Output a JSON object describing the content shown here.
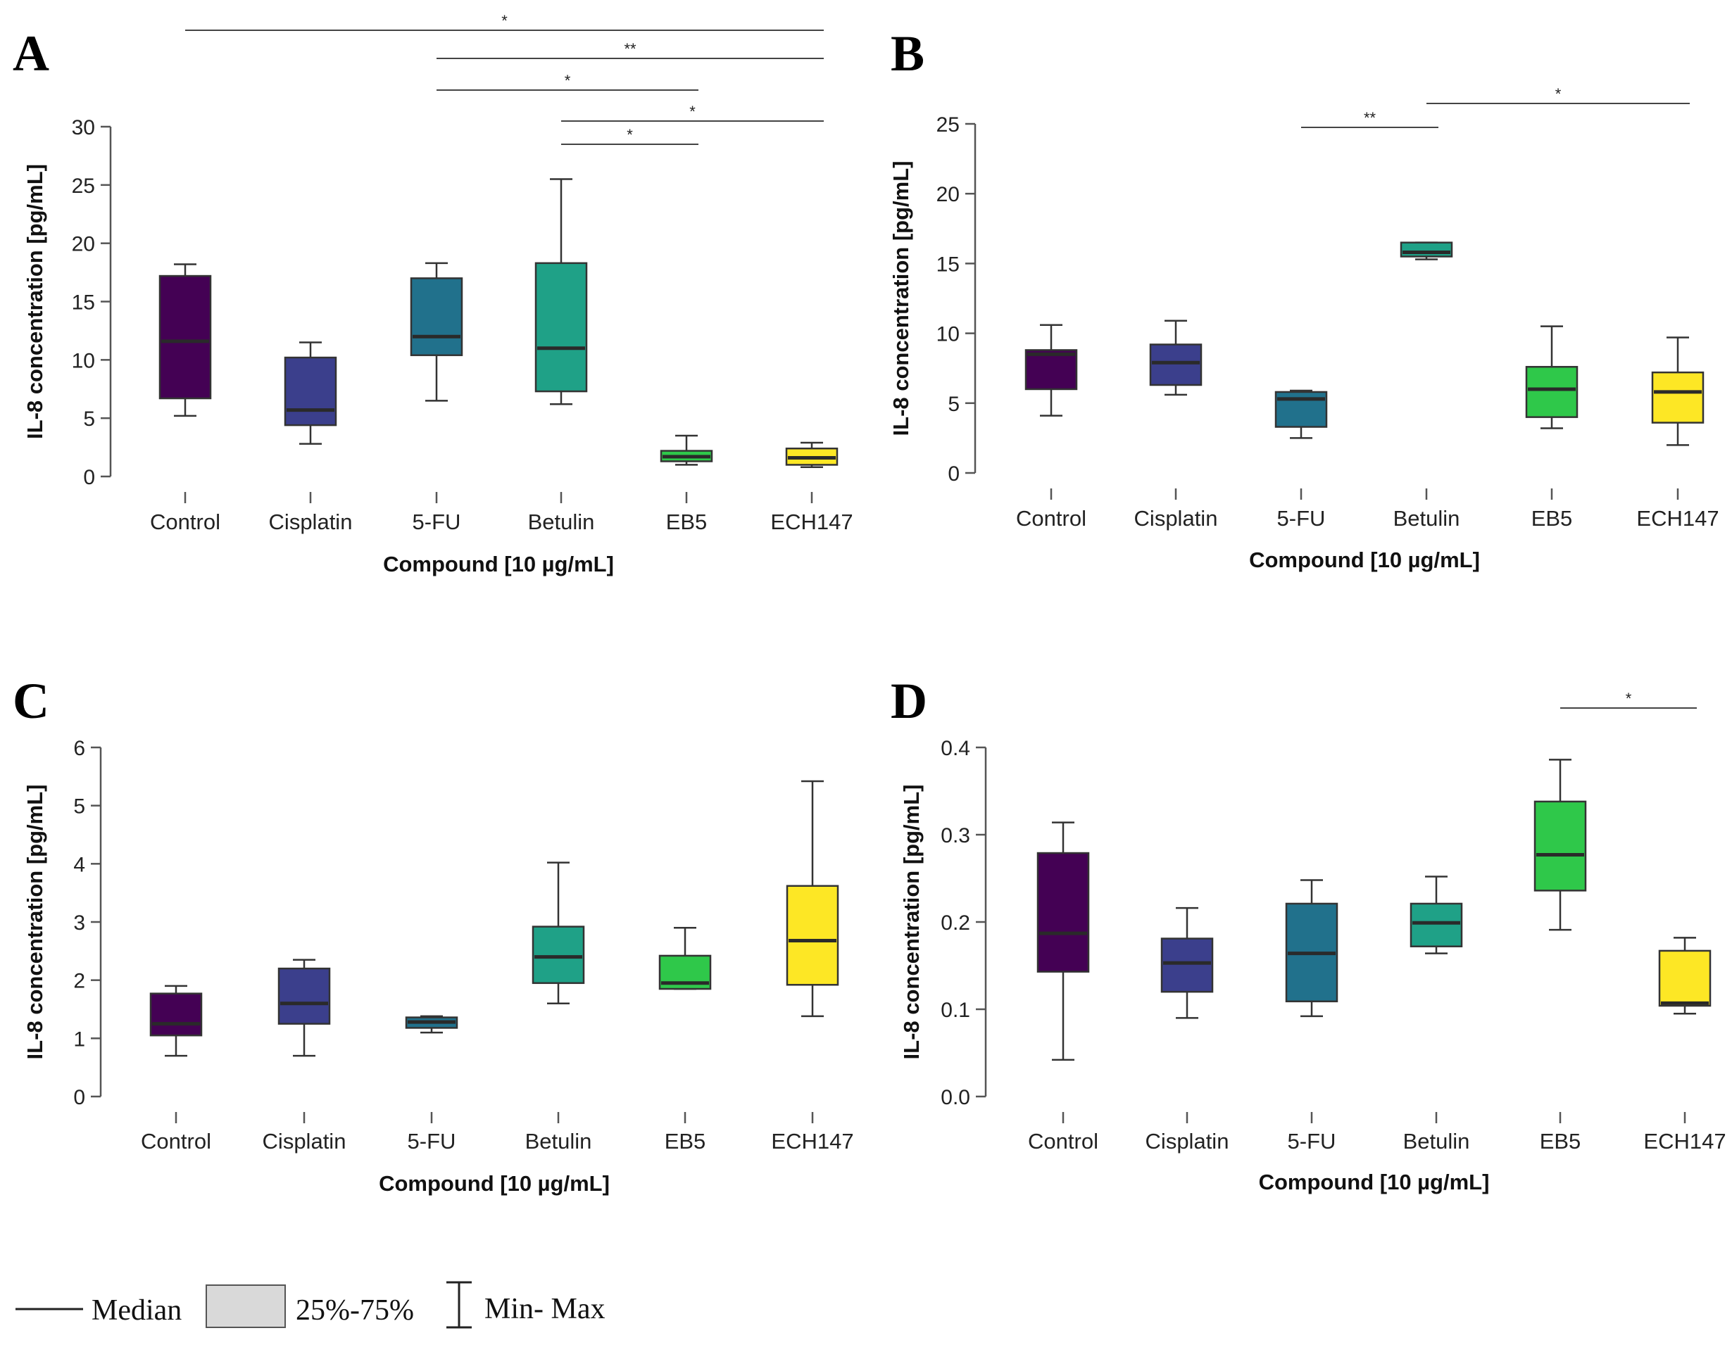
{
  "figure": {
    "legend": {
      "median": "Median",
      "iqr": "25%-75%",
      "range": "Min- Max"
    }
  },
  "chart_data": [
    {
      "panel": "A",
      "type": "box",
      "xlabel": "Compound [10 µg/mL]",
      "ylabel": "IL-8 concentration [pg/mL]",
      "ylim": [
        0,
        30
      ],
      "yticks": [
        "0",
        "5",
        "10",
        "15",
        "20",
        "25",
        "30"
      ],
      "categories": [
        "Control",
        "Cisplatin",
        "5-FU",
        "Betulin",
        "EB5",
        "ECH147"
      ],
      "colors": [
        "#440154",
        "#3b3f8c",
        "#21718c",
        "#1fa187",
        "#2fc84a",
        "#fde725"
      ],
      "boxes": [
        {
          "min": 5.2,
          "q1": 6.7,
          "median": 11.6,
          "q3": 17.2,
          "max": 18.2
        },
        {
          "min": 2.8,
          "q1": 4.4,
          "median": 5.7,
          "q3": 10.2,
          "max": 11.5
        },
        {
          "min": 6.5,
          "q1": 10.4,
          "median": 12.0,
          "q3": 17.0,
          "max": 18.3
        },
        {
          "min": 6.2,
          "q1": 7.3,
          "median": 11.0,
          "q3": 18.3,
          "max": 25.5
        },
        {
          "min": 1.0,
          "q1": 1.3,
          "median": 1.7,
          "q3": 2.2,
          "max": 3.5
        },
        {
          "min": 0.8,
          "q1": 1.0,
          "median": 1.6,
          "q3": 2.4,
          "max": 2.9
        }
      ],
      "significance": [
        {
          "from": 0,
          "to": 5,
          "label": "*",
          "level": 0
        },
        {
          "from": 2,
          "to": 5,
          "label": "**",
          "level": 1
        },
        {
          "from": 2,
          "to": 4,
          "label": "*",
          "level": 2
        },
        {
          "from": 3,
          "to": 5,
          "label": "*",
          "level": 3
        },
        {
          "from": 3,
          "to": 4,
          "label": "*",
          "level": 4
        }
      ]
    },
    {
      "panel": "B",
      "type": "box",
      "xlabel": "Compound [10 µg/mL]",
      "ylabel": "IL-8 concentration [pg/mL]",
      "ylim": [
        0,
        25
      ],
      "yticks": [
        "0",
        "5",
        "10",
        "15",
        "20",
        "25"
      ],
      "categories": [
        "Control",
        "Cisplatin",
        "5-FU",
        "Betulin",
        "EB5",
        "ECH147"
      ],
      "colors": [
        "#440154",
        "#3b3f8c",
        "#21718c",
        "#1fa187",
        "#2fc84a",
        "#fde725"
      ],
      "boxes": [
        {
          "min": 4.1,
          "q1": 6.0,
          "median": 8.5,
          "q3": 8.8,
          "max": 10.6
        },
        {
          "min": 5.6,
          "q1": 6.3,
          "median": 7.9,
          "q3": 9.2,
          "max": 10.9
        },
        {
          "min": 2.5,
          "q1": 3.3,
          "median": 5.3,
          "q3": 5.8,
          "max": 5.9
        },
        {
          "min": 15.3,
          "q1": 15.5,
          "median": 15.8,
          "q3": 16.5,
          "max": 16.5
        },
        {
          "min": 3.2,
          "q1": 4.0,
          "median": 6.0,
          "q3": 7.6,
          "max": 10.5
        },
        {
          "min": 2.0,
          "q1": 3.6,
          "median": 5.8,
          "q3": 7.2,
          "max": 9.7
        }
      ],
      "significance": [
        {
          "from": 2,
          "to": 3,
          "label": "**",
          "level": 1
        },
        {
          "from": 3,
          "to": 5,
          "label": "*",
          "level": 0
        }
      ]
    },
    {
      "panel": "C",
      "type": "box",
      "xlabel": "Compound [10 µg/mL]",
      "ylabel": "IL-8 concentration [pg/mL]",
      "ylim": [
        0,
        6
      ],
      "yticks": [
        "0",
        "1",
        "2",
        "3",
        "4",
        "5",
        "6"
      ],
      "categories": [
        "Control",
        "Cisplatin",
        "5-FU",
        "Betulin",
        "EB5",
        "ECH147"
      ],
      "colors": [
        "#440154",
        "#3b3f8c",
        "#21718c",
        "#1fa187",
        "#2fc84a",
        "#fde725"
      ],
      "boxes": [
        {
          "min": 0.7,
          "q1": 1.05,
          "median": 1.25,
          "q3": 1.77,
          "max": 1.9
        },
        {
          "min": 0.7,
          "q1": 1.25,
          "median": 1.6,
          "q3": 2.2,
          "max": 2.35
        },
        {
          "min": 1.1,
          "q1": 1.18,
          "median": 1.28,
          "q3": 1.36,
          "max": 1.38
        },
        {
          "min": 1.6,
          "q1": 1.95,
          "median": 2.4,
          "q3": 2.92,
          "max": 4.02
        },
        {
          "min": 1.85,
          "q1": 1.85,
          "median": 1.95,
          "q3": 2.42,
          "max": 2.9
        },
        {
          "min": 1.38,
          "q1": 1.92,
          "median": 2.68,
          "q3": 3.62,
          "max": 5.42
        }
      ],
      "significance": []
    },
    {
      "panel": "D",
      "type": "box",
      "xlabel": "Compound [10 µg/mL]",
      "ylabel": "IL-8 concentration [pg/mL]",
      "ylim": [
        0,
        0.4
      ],
      "yticks": [
        "0.0",
        "0.1",
        "0.2",
        "0.3",
        "0.4"
      ],
      "categories": [
        "Control",
        "Cisplatin",
        "5-FU",
        "Betulin",
        "EB5",
        "ECH147"
      ],
      "colors": [
        "#440154",
        "#3b3f8c",
        "#21718c",
        "#1fa187",
        "#2fc84a",
        "#fde725"
      ],
      "boxes": [
        {
          "min": 0.042,
          "q1": 0.143,
          "median": 0.187,
          "q3": 0.279,
          "max": 0.314
        },
        {
          "min": 0.09,
          "q1": 0.12,
          "median": 0.153,
          "q3": 0.181,
          "max": 0.216
        },
        {
          "min": 0.092,
          "q1": 0.109,
          "median": 0.164,
          "q3": 0.221,
          "max": 0.248
        },
        {
          "min": 0.164,
          "q1": 0.172,
          "median": 0.199,
          "q3": 0.221,
          "max": 0.252
        },
        {
          "min": 0.191,
          "q1": 0.236,
          "median": 0.277,
          "q3": 0.338,
          "max": 0.386
        },
        {
          "min": 0.095,
          "q1": 0.104,
          "median": 0.107,
          "q3": 0.167,
          "max": 0.182
        }
      ],
      "significance": [
        {
          "from": 4,
          "to": 5,
          "label": "*",
          "level": 0
        }
      ]
    }
  ]
}
